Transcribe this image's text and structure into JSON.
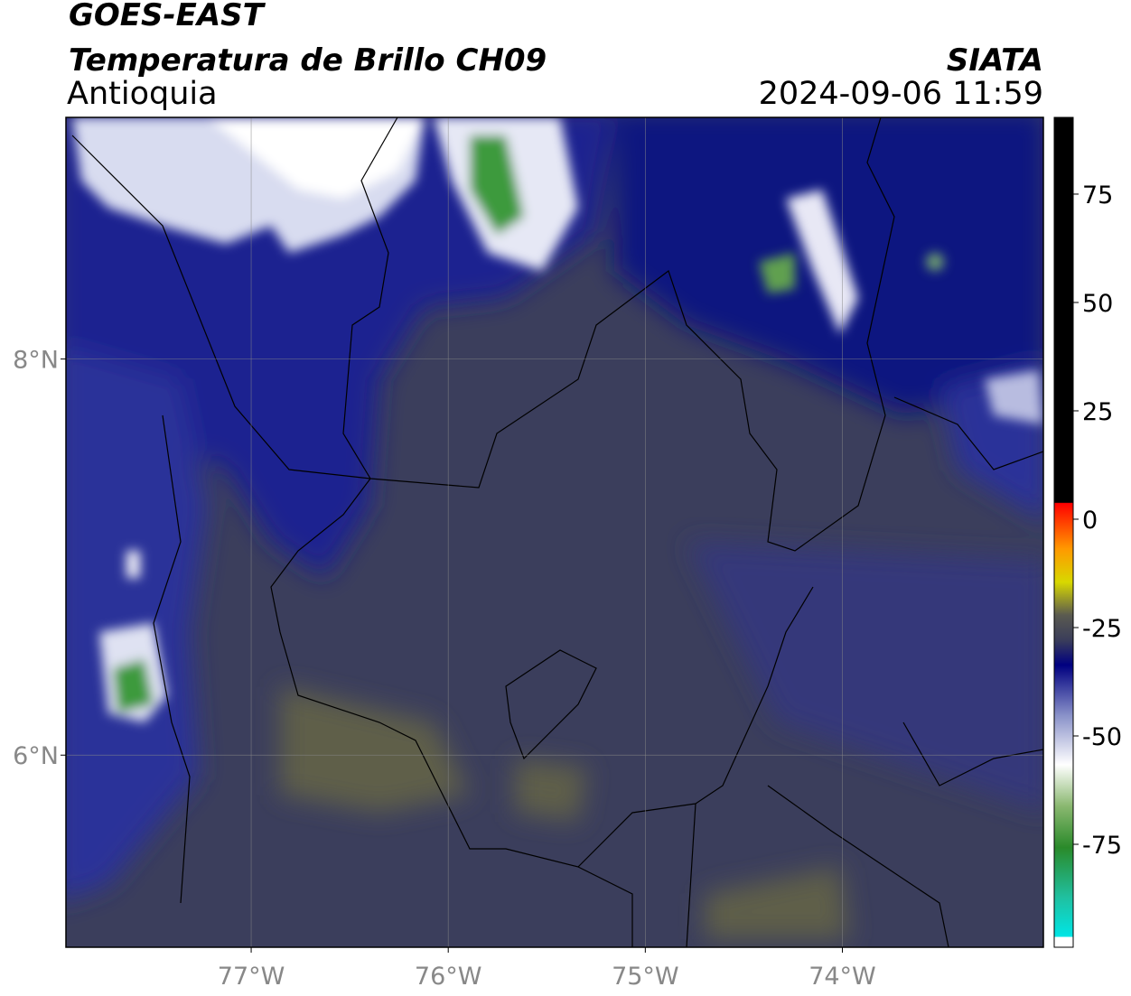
{
  "header": {
    "title": "GOES-EAST",
    "subtitle": "Temperatura de Brillo CH09",
    "region": "Antioquia",
    "source": "SIATA",
    "timestamp": "2024-09-06 11:59"
  },
  "map": {
    "xlim": [
      -77.94,
      -72.98
    ],
    "ylim": [
      5.03,
      9.22
    ],
    "xticks": [
      {
        "value": -77,
        "label": "77°W"
      },
      {
        "value": -76,
        "label": "76°W"
      },
      {
        "value": -75,
        "label": "75°W"
      },
      {
        "value": -74,
        "label": "74°W"
      }
    ],
    "yticks": [
      {
        "value": 8,
        "label": "8°N"
      },
      {
        "value": 6,
        "label": "6°N"
      }
    ],
    "grid": true
  },
  "colorbar": {
    "lim": [
      -98.75,
      92.7
    ],
    "ticks": [
      75,
      50,
      25,
      0,
      -25,
      -50,
      -75
    ]
  }
}
